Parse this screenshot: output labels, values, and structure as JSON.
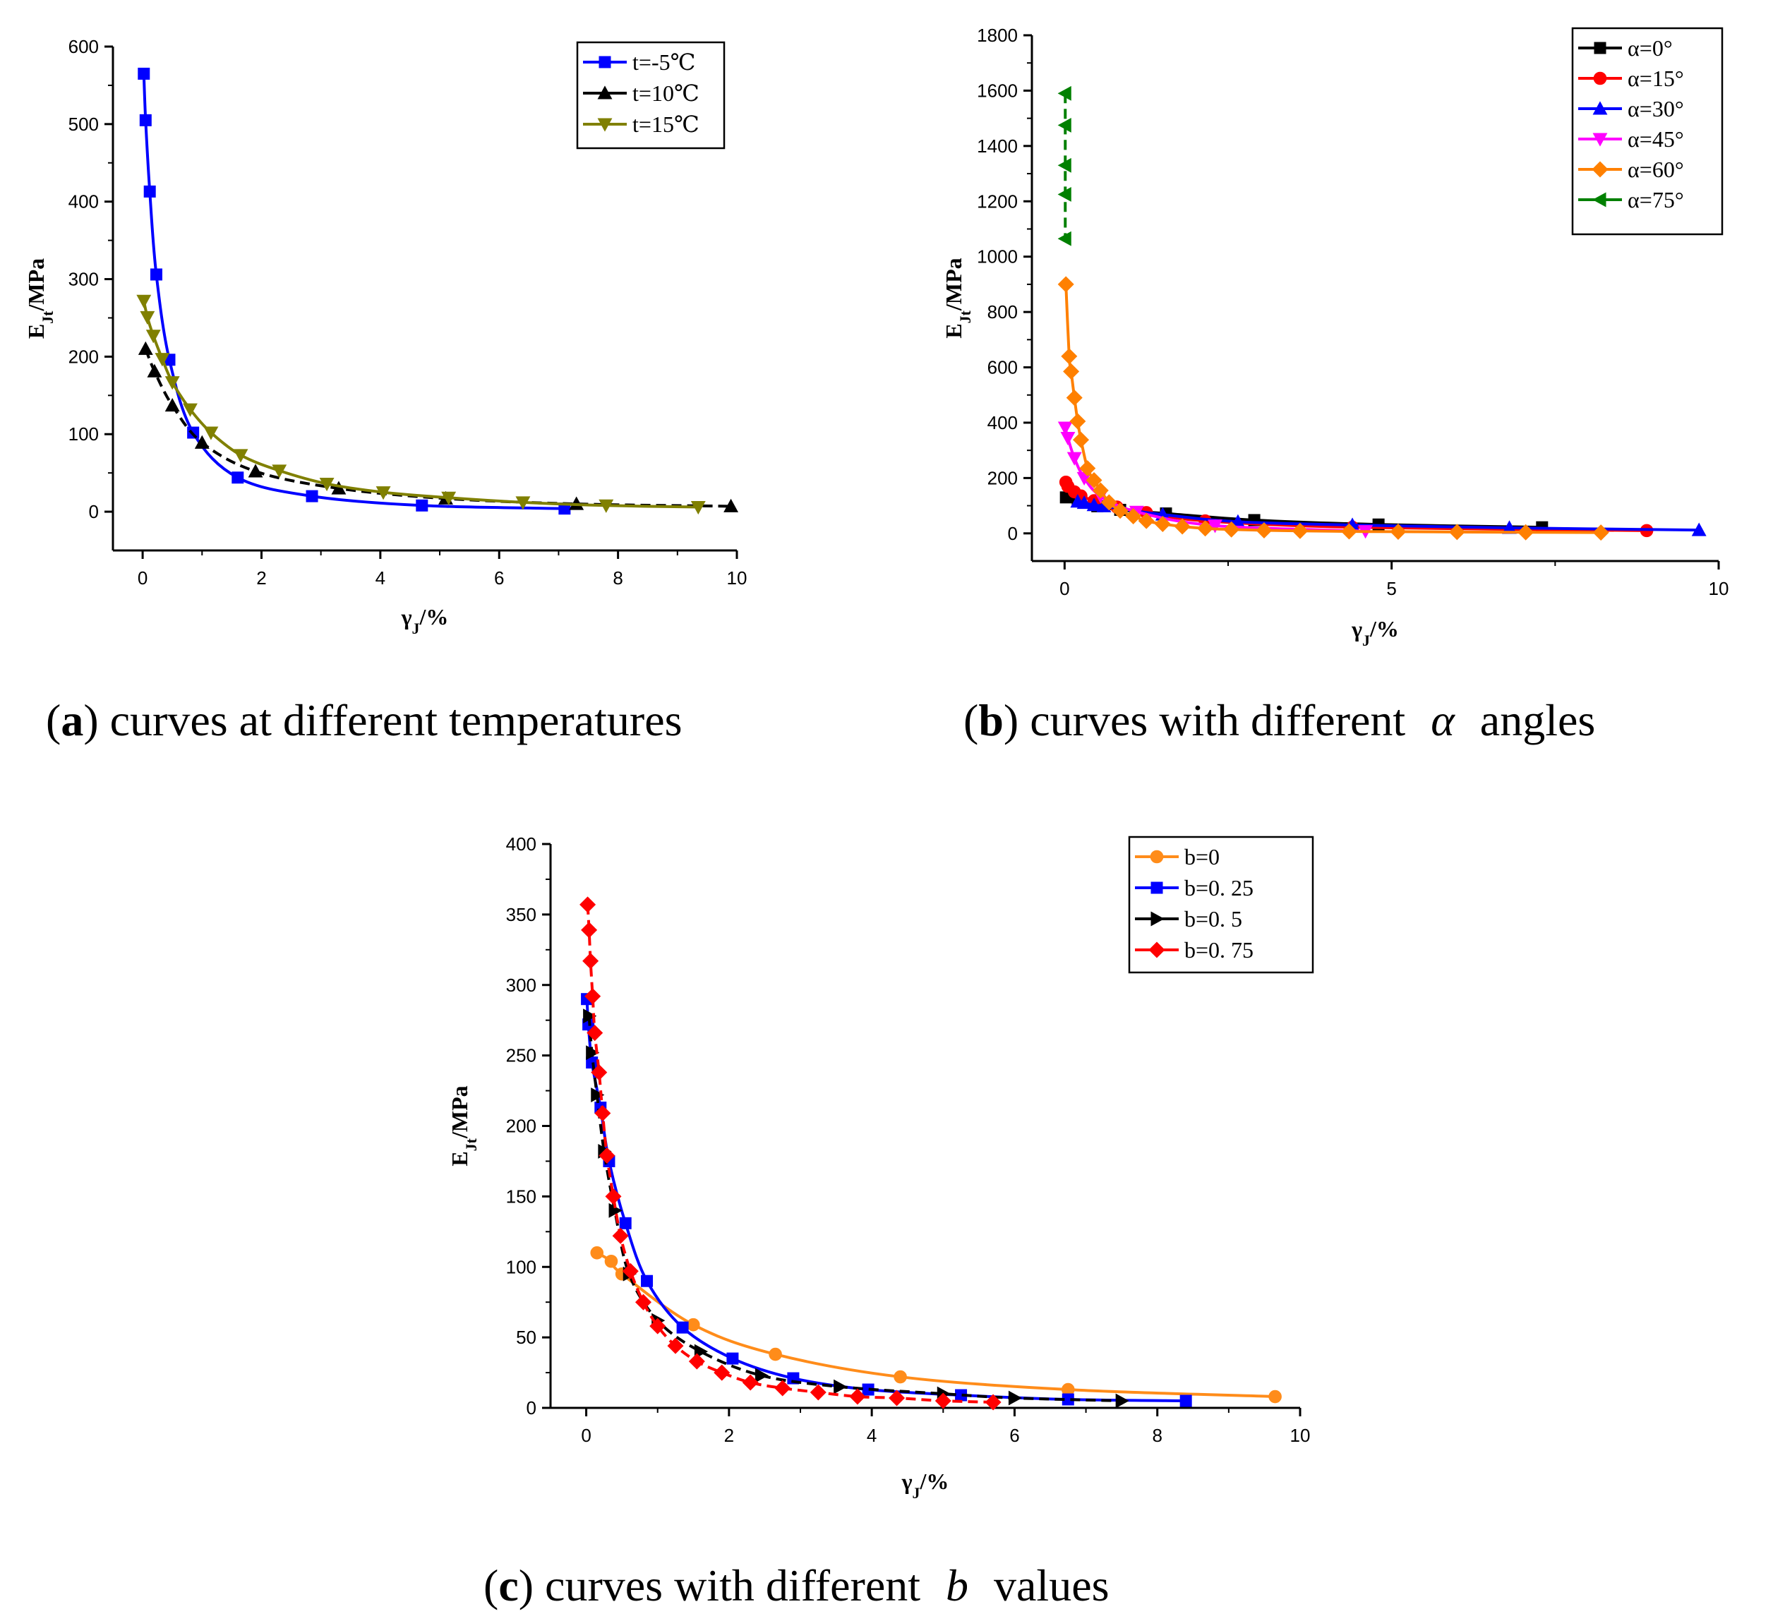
{
  "chart_data": [
    {
      "type": "line",
      "id": "a",
      "caption": {
        "letter": "a",
        "text": ") curves at different temperatures",
        "symbol": ""
      },
      "xlabel": {
        "main": "γ",
        "sub": "J",
        "rest": "/%"
      },
      "ylabel": {
        "main": "E",
        "sub": "Jt",
        "rest": "/MPa"
      },
      "xlim": [
        -0.5,
        10
      ],
      "ylim": [
        -50,
        600
      ],
      "xticks": [
        0,
        2,
        4,
        6,
        8,
        10
      ],
      "yticks": [
        0,
        100,
        200,
        300,
        400,
        500,
        600
      ],
      "series": [
        {
          "name": "t=-5℃",
          "color": "#0000ff",
          "marker": "square",
          "dashed": false,
          "x": [
            0.02,
            0.05,
            0.12,
            0.23,
            0.45,
            0.85,
            1.6,
            2.85,
            4.7,
            7.1
          ],
          "y": [
            565,
            505,
            413,
            306,
            196,
            102,
            44,
            20,
            8,
            4
          ]
        },
        {
          "name": "t=10℃",
          "color": "#000000",
          "marker": "triangle-up",
          "dashed": true,
          "x": [
            0.05,
            0.2,
            0.5,
            1.0,
            1.9,
            3.3,
            5.1,
            7.3,
            9.9
          ],
          "y": [
            210,
            181,
            137,
            89,
            52,
            30,
            17,
            10,
            7
          ]
        },
        {
          "name": "t=15℃",
          "color": "#808000",
          "marker": "triangle-down",
          "dashed": false,
          "x": [
            0.02,
            0.08,
            0.18,
            0.33,
            0.5,
            0.8,
            1.15,
            1.65,
            2.3,
            3.1,
            4.05,
            5.15,
            6.4,
            7.8,
            9.35
          ],
          "y": [
            272,
            251,
            227,
            197,
            167,
            132,
            102,
            73,
            53,
            36,
            25,
            18,
            12,
            8,
            6
          ]
        }
      ]
    },
    {
      "type": "line",
      "id": "b",
      "caption": {
        "letter": "b",
        "text": ") curves with different ",
        "symbol": "α",
        "after": " angles"
      },
      "xlabel": {
        "main": "γ",
        "sub": "J",
        "rest": "/%"
      },
      "ylabel": {
        "main": "E",
        "sub": "Jt",
        "rest": "/MPa"
      },
      "xlim": [
        -0.5,
        10
      ],
      "ylim": [
        -100,
        1800
      ],
      "xticks": [
        0,
        5,
        10
      ],
      "yticks": [
        0,
        200,
        400,
        600,
        800,
        1000,
        1200,
        1400,
        1600,
        1800
      ],
      "series": [
        {
          "name": "α=0°",
          "color": "#000000",
          "marker": "square",
          "dashed": false,
          "x": [
            0.02,
            0.2,
            0.5,
            0.85,
            1.55,
            2.9,
            4.8,
            7.3
          ],
          "y": [
            130,
            118,
            98,
            85,
            72,
            48,
            32,
            22
          ]
        },
        {
          "name": "α=15°",
          "color": "#ff0000",
          "marker": "circle",
          "dashed": false,
          "x": [
            0.02,
            0.05,
            0.15,
            0.25,
            0.45,
            0.8,
            1.25,
            2.15,
            4.4,
            8.9
          ],
          "y": [
            185,
            170,
            150,
            135,
            118,
            95,
            75,
            45,
            22,
            10
          ]
        },
        {
          "name": "α=30°",
          "color": "#0000ff",
          "marker": "triangle-up",
          "dashed": false,
          "x": [
            0.2,
            0.3,
            0.45,
            0.6,
            1.5,
            2.65,
            4.4,
            6.8,
            9.7
          ],
          "y": [
            115,
            110,
            102,
            98,
            68,
            42,
            30,
            20,
            12
          ]
        },
        {
          "name": "α=45°",
          "color": "#ff00ff",
          "marker": "triangle-down",
          "dashed": false,
          "x": [
            0.01,
            0.05,
            0.15,
            0.3,
            0.55,
            1.1,
            2.3,
            4.6
          ],
          "y": [
            382,
            345,
            272,
            200,
            135,
            78,
            28,
            8
          ]
        },
        {
          "name": "α=60°",
          "color": "#ff8000",
          "marker": "diamond",
          "dashed": false,
          "x": [
            0.02,
            0.07,
            0.1,
            0.15,
            0.2,
            0.25,
            0.35,
            0.45,
            0.55,
            0.68,
            0.85,
            1.05,
            1.25,
            1.5,
            1.8,
            2.15,
            2.55,
            3.05,
            3.6,
            4.35,
            5.1,
            6.0,
            7.05,
            8.2
          ],
          "y": [
            900,
            640,
            585,
            490,
            405,
            338,
            235,
            192,
            155,
            112,
            82,
            62,
            45,
            34,
            25,
            18,
            14,
            11,
            9,
            7,
            6,
            5,
            4,
            3
          ]
        },
        {
          "name": "α=75°",
          "color": "#008000",
          "marker": "triangle-left",
          "dashed": true,
          "x": [
            0.01,
            0.01,
            0.01,
            0.01,
            0.01
          ],
          "y": [
            1590,
            1475,
            1330,
            1225,
            1065
          ]
        }
      ]
    },
    {
      "type": "line",
      "id": "c",
      "caption": {
        "letter": "c",
        "text": ") curves with different ",
        "symbol": "b",
        "after": " values"
      },
      "xlabel": {
        "main": "γ",
        "sub": "J",
        "rest": "/%"
      },
      "ylabel": {
        "main": "E",
        "sub": "Jt",
        "rest": "/MPa"
      },
      "xlim": [
        -0.5,
        10
      ],
      "ylim": [
        0,
        400
      ],
      "xticks": [
        0,
        2,
        4,
        6,
        8,
        10
      ],
      "yticks": [
        0,
        50,
        100,
        150,
        200,
        250,
        300,
        350,
        400
      ],
      "series": [
        {
          "name": "b=0",
          "color": "#ff8c1a",
          "marker": "circle",
          "dashed": false,
          "x": [
            0.15,
            0.35,
            0.5,
            1.5,
            2.65,
            4.4,
            6.75,
            9.65
          ],
          "y": [
            110,
            104,
            95,
            59,
            38,
            22,
            13,
            8
          ]
        },
        {
          "name": "b=0. 25",
          "color": "#0000ff",
          "marker": "square",
          "dashed": false,
          "x": [
            0.01,
            0.03,
            0.08,
            0.2,
            0.32,
            0.55,
            0.85,
            1.35,
            2.05,
            2.9,
            3.95,
            5.25,
            6.75,
            8.4
          ],
          "y": [
            290,
            272,
            245,
            213,
            175,
            131,
            90,
            57,
            35,
            21,
            13,
            9,
            6,
            5
          ]
        },
        {
          "name": "b=0. 5",
          "color": "#000000",
          "marker": "triangle-right",
          "dashed": true,
          "x": [
            0.04,
            0.08,
            0.15,
            0.25,
            0.4,
            0.6,
            1.0,
            1.6,
            2.45,
            3.55,
            5.0,
            6.0,
            7.5
          ],
          "y": [
            278,
            252,
            222,
            182,
            140,
            95,
            62,
            40,
            23,
            15,
            10,
            7,
            5
          ]
        },
        {
          "name": "b=0. 75",
          "color": "#ff0000",
          "marker": "diamond",
          "dashed": true,
          "x": [
            0.02,
            0.04,
            0.06,
            0.09,
            0.12,
            0.18,
            0.23,
            0.29,
            0.38,
            0.48,
            0.62,
            0.8,
            1.0,
            1.25,
            1.55,
            1.9,
            2.3,
            2.75,
            3.25,
            3.8,
            4.35,
            5.0,
            5.7
          ],
          "y": [
            357,
            339,
            317,
            292,
            266,
            238,
            209,
            179,
            150,
            122,
            97,
            75,
            58,
            44,
            33,
            25,
            18,
            14,
            11,
            8,
            7,
            5,
            4
          ]
        }
      ]
    }
  ]
}
